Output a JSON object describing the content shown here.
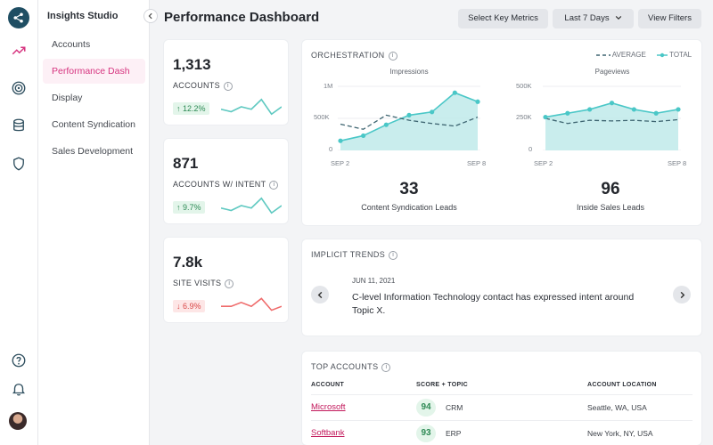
{
  "app": {
    "title": "Insights Studio"
  },
  "nav": {
    "items": [
      {
        "label": "Accounts",
        "active": false
      },
      {
        "label": "Performance Dash",
        "active": true
      },
      {
        "label": "Display",
        "active": false
      },
      {
        "label": "Content Syndication",
        "active": false
      },
      {
        "label": "Sales Development",
        "active": false
      }
    ]
  },
  "rail": {
    "top_icons": [
      "share-logo-icon",
      "trend-up-icon",
      "target-icon",
      "database-icon",
      "shield-icon"
    ],
    "bottom_icons": [
      "help-icon",
      "bell-icon",
      "user-avatar"
    ]
  },
  "header": {
    "title": "Performance Dashboard",
    "select_metrics": "Select Key Metrics",
    "date_range": "Last 7 Days",
    "view_filters": "View Filters"
  },
  "kpis": [
    {
      "value": "1,313",
      "label": "ACCOUNTS",
      "delta": "12.2%",
      "direction": "up",
      "spark_color": "#5fc9c1",
      "spark": [
        5,
        4,
        6,
        5,
        9,
        3,
        6
      ]
    },
    {
      "value": "871",
      "label": "ACCOUNTS W/ INTENT",
      "delta": "9.7%",
      "direction": "up",
      "spark_color": "#5fc9c1",
      "spark": [
        5,
        4,
        6,
        5,
        9,
        3,
        6
      ]
    },
    {
      "value": "7.8k",
      "label": "SITE VISITS",
      "delta": "6.9%",
      "direction": "down",
      "spark_color": "#ef6b6b",
      "spark": [
        5,
        5,
        6,
        5,
        7,
        4,
        5
      ]
    }
  ],
  "orchestration": {
    "title": "ORCHESTRATION",
    "legend": {
      "average": "AVERAGE",
      "total": "TOTAL"
    },
    "colors": {
      "total": "#4ac7c7",
      "fill": "#bfeaea",
      "average": "#3d6470"
    },
    "charts": [
      {
        "name": "Impressions",
        "y_ticks": [
          "1M",
          "500K",
          "0"
        ],
        "ylim": [
          0,
          1000000
        ],
        "x_start": "SEP 2",
        "x_end": "SEP 8",
        "total": [
          150000,
          230000,
          400000,
          550000,
          600000,
          900000,
          760000
        ],
        "average": [
          410000,
          330000,
          550000,
          470000,
          420000,
          380000,
          520000
        ],
        "stat_value": "33",
        "stat_label": "Content Syndication Leads"
      },
      {
        "name": "Pageviews",
        "y_ticks": [
          "500K",
          "250K",
          "0"
        ],
        "ylim": [
          0,
          500000
        ],
        "x_start": "SEP 2",
        "x_end": "SEP 8",
        "total": [
          260000,
          290000,
          320000,
          370000,
          320000,
          290000,
          320000
        ],
        "average": [
          250000,
          210000,
          235000,
          230000,
          235000,
          225000,
          240000
        ],
        "stat_value": "96",
        "stat_label": "Inside Sales Leads"
      }
    ]
  },
  "trends": {
    "title": "IMPLICIT TRENDS",
    "date": "JUN 11, 2021",
    "text": "C-level Information Technology contact has expressed intent around Topic X."
  },
  "top_accounts": {
    "title": "TOP ACCOUNTS",
    "headers": {
      "account": "ACCOUNT",
      "score": "SCORE + TOPIC",
      "location": "ACCOUNT LOCATION"
    },
    "rows": [
      {
        "account": "Microsoft",
        "score": "94",
        "topic": "CRM",
        "location": "Seattle, WA, USA"
      },
      {
        "account": "Softbank",
        "score": "93",
        "topic": "ERP",
        "location": "New York, NY, USA"
      }
    ]
  }
}
